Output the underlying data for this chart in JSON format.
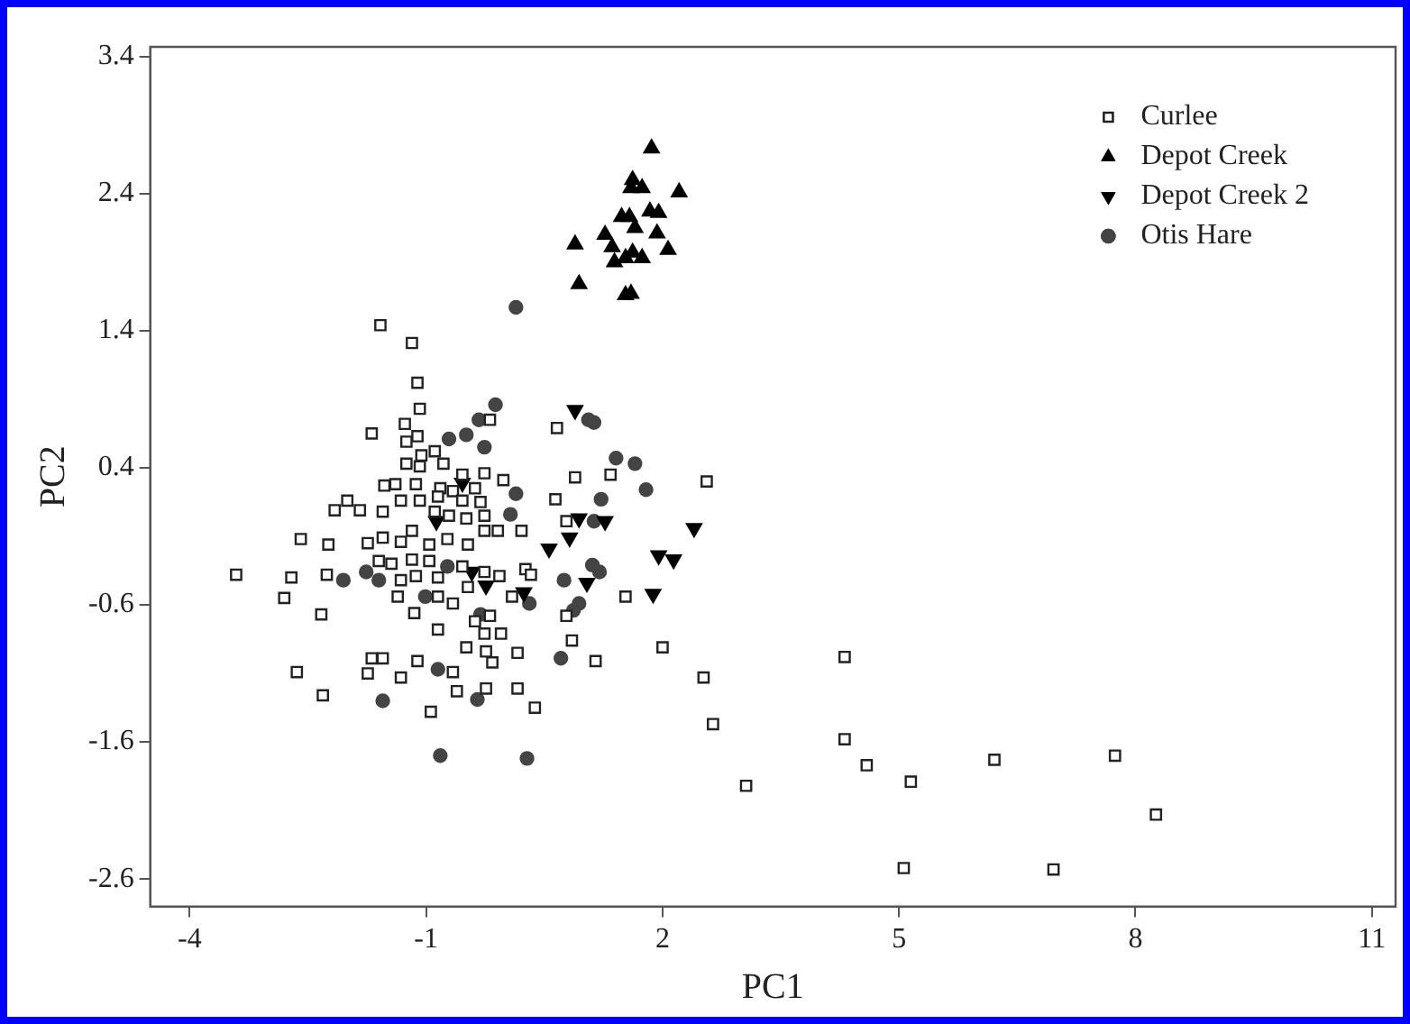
{
  "chart_data": {
    "type": "scatter",
    "xlabel": "PC1",
    "ylabel": "PC2",
    "xlim": [
      -4.5,
      11.3
    ],
    "ylim": [
      -2.8,
      3.47
    ],
    "xticks": [
      -4,
      -1,
      2,
      5,
      8,
      11
    ],
    "yticks": [
      -2.6,
      -1.6,
      -0.6,
      0.4,
      1.4,
      2.4,
      3.4
    ],
    "grid": false,
    "legend": "top right",
    "series": [
      {
        "name": "Curlee",
        "color": "#222222",
        "marker": "square",
        "x": [
          2.56,
          2.52,
          2.64,
          3.06,
          4.31,
          4.31,
          4.59,
          5.15,
          6.21,
          7.74,
          8.26,
          5.06,
          6.96,
          -1.58,
          -1.18,
          -1.11,
          -1.08,
          -1.69,
          -1.27,
          -1.11,
          -1.25,
          -0.89,
          -1.06,
          -1.25,
          -1.08,
          -0.78,
          -0.54,
          -0.26,
          -0.02,
          -1.53,
          -1.39,
          -1.13,
          -0.82,
          -0.66,
          -0.38,
          -2.0,
          -2.16,
          -1.84,
          -1.55,
          -1.32,
          -1.08,
          -0.85,
          -0.54,
          -0.31,
          -0.89,
          -0.71,
          -0.49,
          -0.26,
          -2.59,
          -2.24,
          -1.74,
          -1.55,
          -1.32,
          -1.18,
          -0.96,
          -0.73,
          -0.47,
          -0.26,
          -0.09,
          0.21,
          -3.41,
          -2.71,
          -2.26,
          -1.6,
          -1.44,
          -1.18,
          -0.96,
          -1.32,
          -1.13,
          -0.85,
          -0.54,
          -0.26,
          -0.07,
          0.26,
          0.33,
          -2.8,
          -1.36,
          -0.85,
          -0.66,
          -0.47,
          0.09,
          -2.33,
          -1.15,
          -0.38,
          -0.19,
          -0.85,
          -0.26,
          -0.05,
          -0.49,
          -0.24,
          0.16,
          -2.64,
          -1.69,
          -1.55,
          -1.74,
          -1.32,
          -1.11,
          -0.66,
          -0.16,
          -2.31,
          -0.61,
          -0.24,
          0.16,
          0.38,
          -0.94,
          -0.19,
          0.66,
          0.89,
          1.34,
          0.64,
          0.78,
          1.53,
          0.78,
          0.85,
          1.15,
          2.0
        ],
        "values": [
          0.3,
          -1.13,
          -1.47,
          -1.92,
          -0.98,
          -1.58,
          -1.77,
          -1.89,
          -1.73,
          -1.7,
          -2.13,
          -2.52,
          -2.53,
          1.44,
          1.31,
          1.02,
          0.83,
          0.65,
          0.72,
          0.63,
          0.59,
          0.52,
          0.49,
          0.43,
          0.41,
          0.43,
          0.35,
          0.36,
          0.31,
          0.27,
          0.28,
          0.28,
          0.25,
          0.23,
          0.25,
          0.16,
          0.09,
          0.09,
          0.08,
          0.16,
          0.16,
          0.19,
          0.16,
          0.15,
          0.08,
          0.05,
          0.03,
          0.05,
          -0.12,
          -0.16,
          -0.15,
          -0.11,
          -0.14,
          -0.06,
          -0.16,
          -0.12,
          -0.16,
          -0.06,
          -0.06,
          -0.06,
          -0.38,
          -0.4,
          -0.38,
          -0.28,
          -0.3,
          -0.27,
          -0.28,
          -0.42,
          -0.39,
          -0.4,
          -0.32,
          -0.36,
          -0.39,
          -0.34,
          -0.38,
          -0.55,
          -0.54,
          -0.54,
          -0.59,
          -0.47,
          -0.54,
          -0.67,
          -0.66,
          -0.72,
          -0.68,
          -0.78,
          -0.81,
          -0.81,
          -0.91,
          -0.94,
          -0.95,
          -1.09,
          -0.99,
          -0.99,
          -1.1,
          -1.13,
          -1.01,
          -1.09,
          -1.02,
          -1.26,
          -1.23,
          -1.21,
          -1.21,
          -1.35,
          -1.38,
          0.75,
          0.69,
          0.33,
          0.35,
          0.17,
          0.01,
          -0.54,
          -0.68,
          -0.86,
          -1.01,
          -0.91
        ]
      },
      {
        "name": "Depot Creek",
        "color": "#000000",
        "marker": "triangle",
        "x": [
          1.86,
          1.62,
          1.74,
          1.6,
          2.21,
          1.48,
          1.58,
          1.84,
          1.95,
          1.65,
          1.93,
          1.27,
          0.89,
          1.36,
          2.07,
          1.62,
          1.74,
          1.39,
          1.53,
          0.94,
          1.53,
          1.6
        ],
        "values": [
          2.73,
          2.5,
          2.44,
          2.44,
          2.41,
          2.23,
          2.23,
          2.27,
          2.26,
          2.15,
          2.11,
          2.1,
          2.03,
          2.01,
          1.99,
          1.97,
          1.93,
          1.9,
          1.93,
          1.74,
          1.66,
          1.67
        ]
      },
      {
        "name": "Depot Creek 2",
        "color": "#000000",
        "marker": "triangle-down",
        "x": [
          0.89,
          0.94,
          1.27,
          0.82,
          0.56,
          2.4,
          1.95,
          2.14,
          1.04,
          1.88,
          0.24,
          -0.24,
          -0.42,
          -0.54,
          -0.87
        ],
        "values": [
          0.82,
          0.03,
          0.01,
          -0.11,
          -0.19,
          -0.04,
          -0.24,
          -0.27,
          -0.44,
          -0.52,
          -0.51,
          -0.46,
          -0.36,
          0.29,
          0.01
        ]
      },
      {
        "name": "Otis Hare",
        "color": "#444444",
        "marker": "circle",
        "x": [
          0.14,
          -0.12,
          -0.33,
          1.06,
          1.13,
          -0.49,
          -0.26,
          1.41,
          1.65,
          1.79,
          0.14,
          1.22,
          1.13,
          1.11,
          1.2,
          0.31,
          0.94,
          0.87,
          0.71,
          -0.35,
          0.75,
          -0.71,
          0.07,
          -2.05,
          -1.76,
          -1.6,
          -0.73,
          -1.01,
          -0.31,
          -0.85,
          -1.55,
          -0.82,
          0.28
        ],
        "values": [
          1.57,
          0.86,
          0.75,
          0.75,
          0.73,
          0.64,
          0.55,
          0.47,
          0.43,
          0.24,
          0.21,
          0.17,
          0.01,
          -0.31,
          -0.36,
          -0.59,
          -0.59,
          -0.64,
          -0.99,
          -1.29,
          -0.42,
          0.61,
          0.06,
          -0.42,
          -0.36,
          -0.42,
          -0.32,
          -0.54,
          -0.67,
          -1.07,
          -1.3,
          -1.7,
          -1.72
        ]
      }
    ]
  }
}
